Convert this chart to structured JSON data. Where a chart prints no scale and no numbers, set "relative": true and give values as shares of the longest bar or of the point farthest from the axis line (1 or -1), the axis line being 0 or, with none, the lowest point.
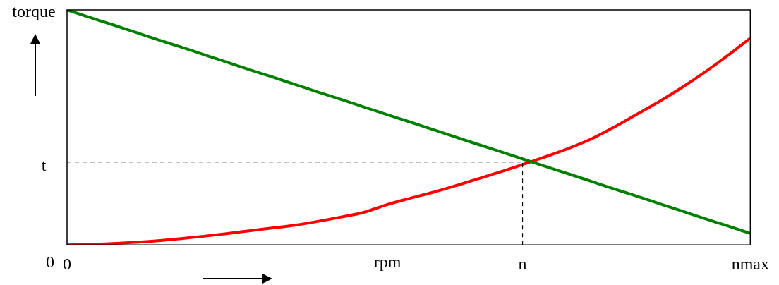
{
  "chart_data": {
    "type": "line",
    "relative": true,
    "ylabel": "torque",
    "xlabel": "rpm",
    "categories": [
      "0",
      null,
      null,
      null,
      null,
      null,
      null,
      null,
      null,
      null,
      null,
      null,
      null,
      null,
      null,
      null,
      null,
      null,
      null,
      null,
      "n",
      null,
      null,
      null,
      null,
      null,
      null,
      null,
      null,
      null,
      "nmax"
    ],
    "series": [
      {
        "color": "#008000",
        "values": [
          1,
          0.968,
          0.937,
          0.905,
          0.873,
          0.842,
          0.81,
          0.778,
          0.746,
          0.715,
          0.683,
          0.651,
          0.62,
          0.588,
          0.556,
          0.525,
          0.493,
          0.461,
          0.429,
          0.398,
          0.366,
          0.334,
          0.303,
          0.271,
          0.239,
          0.208,
          0.176,
          0.144,
          0.112,
          0.081,
          0.049
        ]
      },
      {
        "color": "#ff0000",
        "values": [
          0,
          0.002,
          0.006,
          0.011,
          0.018,
          0.027,
          0.037,
          0.048,
          0.06,
          0.072,
          0.084,
          0.1,
          0.118,
          0.138,
          0.17,
          0.197,
          0.222,
          0.25,
          0.28,
          0.31,
          0.342,
          0.375,
          0.41,
          0.45,
          0.5,
          0.555,
          0.61,
          0.67,
          0.735,
          0.805,
          0.88
        ]
      }
    ],
    "ref_lines": [
      {
        "axis": "y",
        "value": 0.353,
        "label": "t",
        "line_style": "dashed"
      },
      {
        "axis": "x",
        "value": "n",
        "line_style": "dashed"
      }
    ],
    "annotations": [
      "0"
    ],
    "marker": "none",
    "line_style": "solid",
    "legend": false,
    "grid": false
  }
}
